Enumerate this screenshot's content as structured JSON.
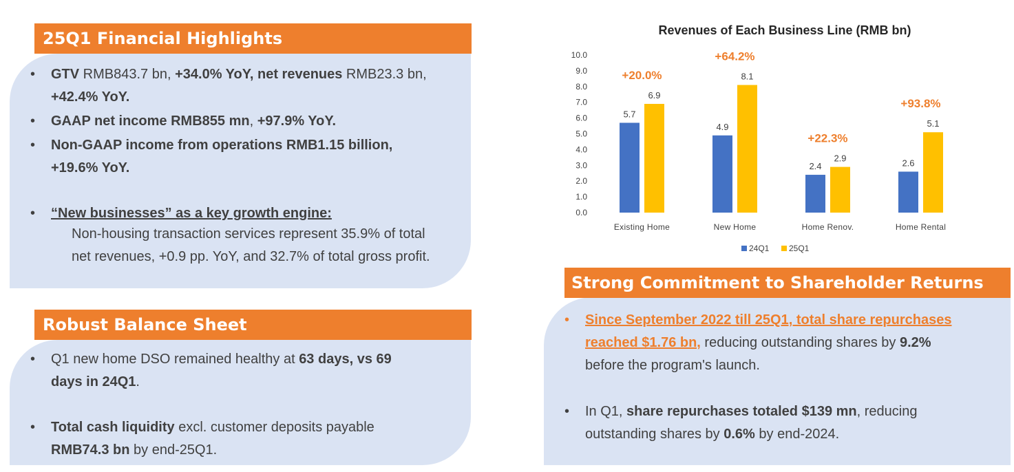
{
  "financial_highlights": {
    "title": "25Q1 Financial Highlights",
    "bullet1": {
      "a": "GTV",
      "b": " RMB843.7 bn, ",
      "c": "+34.0% YoY, net revenues",
      "d": " RMB23.3 bn, ",
      "e": "+42.4% YoY."
    },
    "bullet2": {
      "a": "GAAP net income RMB855 mn",
      "b": ", ",
      "c": "+97.9% YoY."
    },
    "bullet3": {
      "a": "Non-GAAP income from operations RMB1.15 billion,",
      "b": "+19.6% YoY."
    },
    "bullet4": {
      "heading": "“New businesses” as a key growth engine:",
      "line1": "Non-housing transaction services represent 35.9% of total",
      "line2": "net revenues, +0.9 pp. YoY, and 32.7% of total gross profit."
    }
  },
  "balance_sheet": {
    "title": "Robust Balance Sheet",
    "bullet1": {
      "a": "Q1 new home DSO remained healthy at ",
      "b": "63 days, vs 69",
      "c": "days in 24Q1",
      "d": "."
    },
    "bullet2": {
      "a": "Total cash liquidity",
      "b": " excl. customer deposits payable",
      "c": "RMB74.3 bn",
      "d": " by end-25Q1."
    }
  },
  "shareholder_returns": {
    "title": "Strong Commitment to Shareholder Returns",
    "bullet1": {
      "link1": "Since September 2022 till 25Q1, total share repurchases",
      "link2": "reached $1.76 bn,",
      "a": " reducing outstanding shares by ",
      "b": "9.2%",
      "c": "before the program's launch."
    },
    "bullet2": {
      "a": "In Q1, ",
      "b": "share repurchases totaled $139 mn",
      "c": ", reducing",
      "d": "outstanding shares by ",
      "e": "0.6%",
      "f": " by end-2024."
    }
  },
  "chart_data": {
    "type": "bar",
    "title": "Revenues of Each Business Line (RMB bn)",
    "categories": [
      "Existing Home",
      "New Home",
      "Home Renov.",
      "Home Rental"
    ],
    "series": [
      {
        "name": "24Q1",
        "values": [
          5.7,
          4.9,
          2.4,
          2.6
        ],
        "color": "#4472c4"
      },
      {
        "name": "25Q1",
        "values": [
          6.9,
          8.1,
          2.9,
          5.1
        ],
        "color": "#ffc000"
      }
    ],
    "growth_labels": [
      "+20.0%",
      "+64.2%",
      "+22.3%",
      "+93.8%"
    ],
    "growth_color": "#ee7f2d",
    "ylim": [
      0,
      10
    ],
    "yticks": [
      "0.0",
      "1.0",
      "2.0",
      "3.0",
      "4.0",
      "5.0",
      "6.0",
      "7.0",
      "8.0",
      "9.0",
      "10.0"
    ],
    "grid": false,
    "legend": "bottom"
  }
}
